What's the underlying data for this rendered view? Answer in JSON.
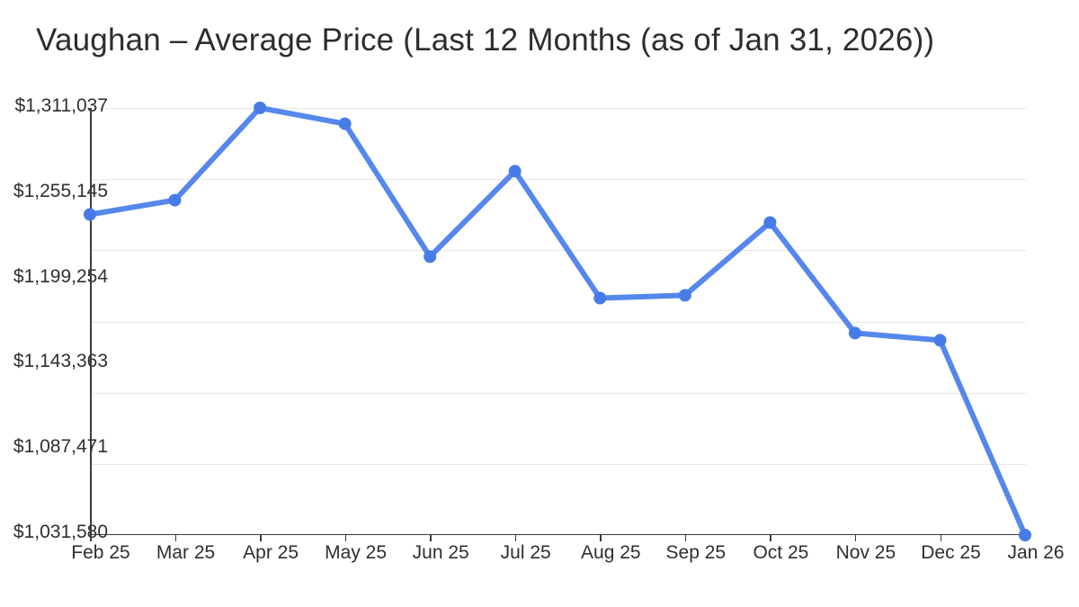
{
  "chart_data": {
    "type": "line",
    "title": "Vaughan – Average Price (Last 12 Months (as of Jan 31, 2026))",
    "categories": [
      "Feb 25",
      "Mar 25",
      "Apr 25",
      "May 25",
      "Jun 25",
      "Jul 25",
      "Aug 25",
      "Sep 25",
      "Oct 25",
      "Nov 25",
      "Dec 25",
      "Jan 26"
    ],
    "series": [
      {
        "name": "Average Price",
        "values": [
          1241300,
          1250700,
          1311037,
          1300700,
          1213700,
          1269600,
          1186600,
          1188400,
          1236000,
          1163700,
          1159000,
          1031580
        ]
      }
    ],
    "y_axis": {
      "min": 1031580,
      "max": 1311037,
      "tick_labels": [
        "$1,311,037",
        "$1,255,145",
        "$1,199,254",
        "$1,143,363",
        "$1,087,471",
        "$1,031,580"
      ],
      "tick_values": [
        1311037,
        1255145,
        1199254,
        1143363,
        1087471,
        1031580
      ]
    },
    "xlabel": "",
    "ylabel": "",
    "legend": "none",
    "grid": "horizontal",
    "colors": {
      "line": "#5587ec",
      "marker": "#477ce8",
      "grid": "#e7e7e7",
      "axis": "#3b3b3b",
      "text": "#2f2f2f",
      "title_text": "#2d2d2d"
    }
  }
}
